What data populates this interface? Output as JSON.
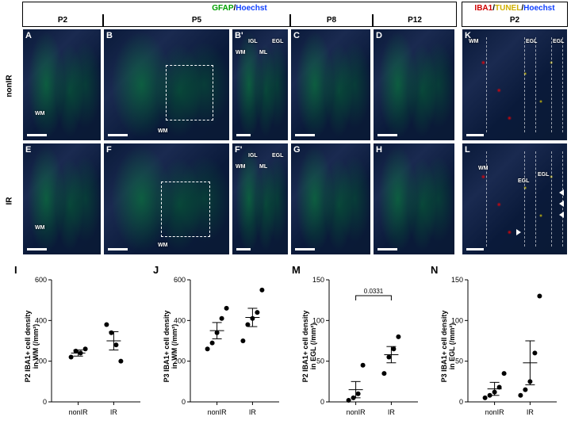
{
  "legend_left": {
    "s1": "GFAP",
    "s2": "Hoechst",
    "c1": "green",
    "c2": "blue"
  },
  "legend_right": {
    "s1": "IBA1",
    "s2": "TUNEL",
    "s3": "Hoechst",
    "c1": "red",
    "c2": "yellow",
    "c3": "blue"
  },
  "cols": {
    "p2": "P2",
    "p5": "P5",
    "p8": "P8",
    "p12": "P12",
    "p2r": "P2"
  },
  "rows": {
    "nonir": "nonIR",
    "ir": "IR"
  },
  "panels": {
    "A": {
      "regions": [
        "WM"
      ]
    },
    "B": {
      "regions": [
        "WM"
      ]
    },
    "Bp": {
      "label": "B'",
      "regions": [
        "WM",
        "IGL",
        "EGL",
        "ML"
      ]
    },
    "C": {},
    "D": {},
    "E": {
      "regions": [
        "WM"
      ]
    },
    "F": {
      "regions": [
        "WM"
      ]
    },
    "Fp": {
      "label": "F'",
      "regions": [
        "WM",
        "IGL",
        "EGL",
        "ML"
      ]
    },
    "G": {},
    "H": {},
    "K": {
      "regions": [
        "WM",
        "EGL",
        "EGL"
      ]
    },
    "L": {
      "regions": [
        "WM",
        "EGL",
        "EGL"
      ]
    }
  },
  "charts": {
    "I": {
      "letter": "I",
      "ylabel_l1": "P2 IBA1+ cell density",
      "ylabel_l2": "in WM (/mm²)",
      "ymax": 600,
      "ystep": 200,
      "groups": [
        "nonIR",
        "IR"
      ],
      "data": [
        [
          220,
          250,
          240,
          260
        ],
        [
          380,
          340,
          280,
          200
        ]
      ],
      "mean": [
        240,
        300
      ],
      "sem": [
        15,
        45
      ],
      "pval": null
    },
    "J": {
      "letter": "J",
      "ylabel_l1": "P3 IBA1+ cell density",
      "ylabel_l2": "in WM (/mm²)",
      "ymax": 600,
      "ystep": 200,
      "groups": [
        "nonIR",
        "IR"
      ],
      "data": [
        [
          260,
          290,
          340,
          410,
          460
        ],
        [
          300,
          380,
          410,
          440,
          550
        ]
      ],
      "mean": [
        350,
        415
      ],
      "sem": [
        40,
        45
      ],
      "pval": null
    },
    "M": {
      "letter": "M",
      "ylabel_l1": "P2 IBA1+ cell density",
      "ylabel_l2": "in EGL (/mm²)",
      "ymax": 150,
      "ystep": 50,
      "groups": [
        "nonIR",
        "IR"
      ],
      "data": [
        [
          2,
          5,
          10,
          45
        ],
        [
          35,
          55,
          65,
          80
        ]
      ],
      "mean": [
        15,
        58
      ],
      "sem": [
        10,
        10
      ],
      "pval": "0.0331"
    },
    "N": {
      "letter": "N",
      "ylabel_l1": "P3 IBA1+ cell density",
      "ylabel_l2": "in EGL (/mm²)",
      "ymax": 150,
      "ystep": 50,
      "groups": [
        "nonIR",
        "IR"
      ],
      "data": [
        [
          5,
          8,
          12,
          18,
          35
        ],
        [
          8,
          15,
          25,
          60,
          130
        ]
      ],
      "mean": [
        16,
        48
      ],
      "sem": [
        8,
        27
      ],
      "pval": null
    }
  },
  "colors": {
    "axis": "#000000",
    "point": "#000000"
  }
}
